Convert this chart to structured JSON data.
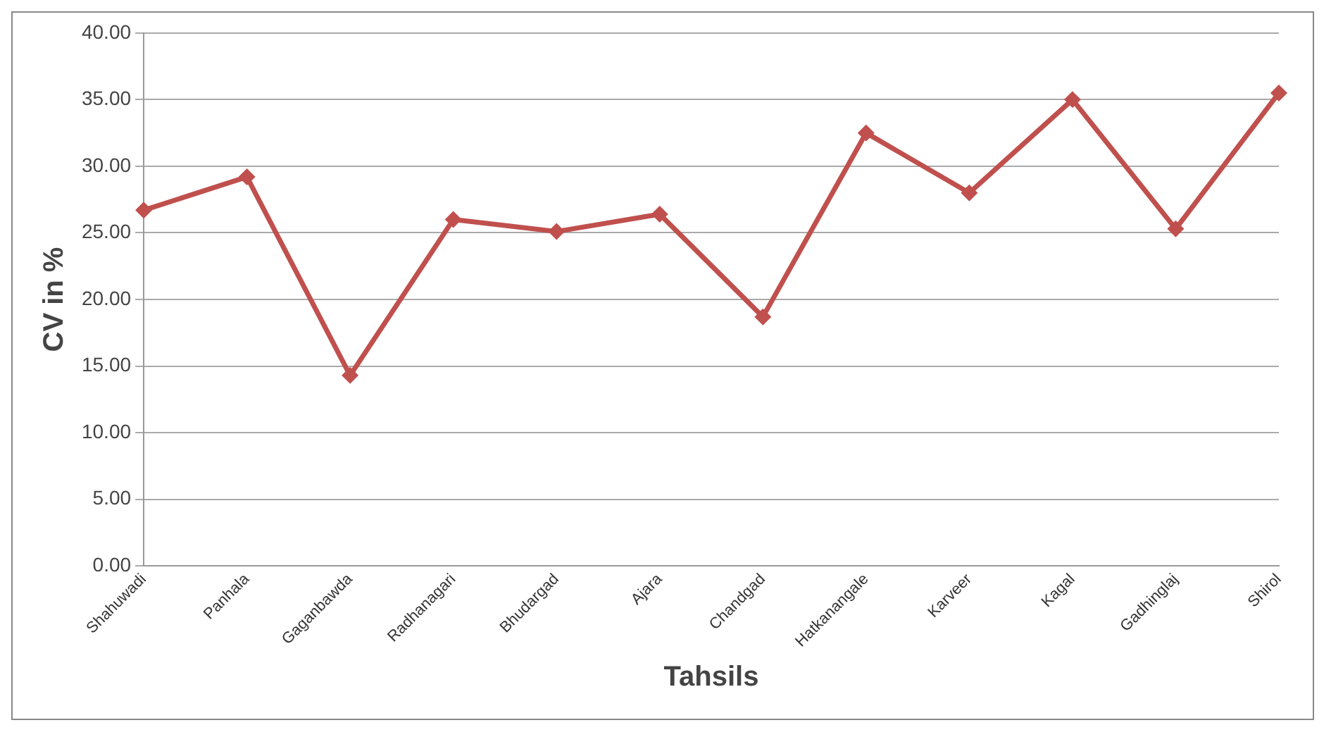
{
  "chart_data": {
    "type": "line",
    "xlabel": "Tahsils",
    "ylabel": "CV in %",
    "categories": [
      "Shahuwadi",
      "Panhala",
      "Gaganbawda",
      "Radhanagari",
      "Bhudargad",
      "Ajara",
      "Chandgad",
      "Hatkanangale",
      "Karveer",
      "Kagal",
      "Gadhinglaj",
      "Shirol"
    ],
    "series": [
      {
        "color": "#c0504d",
        "values": [
          26.7,
          29.2,
          14.3,
          26.0,
          25.1,
          26.4,
          18.7,
          32.5,
          28.0,
          35.0,
          25.3,
          35.5
        ]
      }
    ],
    "ylim": [
      0,
      40
    ],
    "yticks": [
      {
        "value": 0,
        "label": "0.00"
      },
      {
        "value": 5,
        "label": "5.00"
      },
      {
        "value": 10,
        "label": "10.00"
      },
      {
        "value": 15,
        "label": "15.00"
      },
      {
        "value": 20,
        "label": "20.00"
      },
      {
        "value": 25,
        "label": "25.00"
      },
      {
        "value": 30,
        "label": "30.00"
      },
      {
        "value": 35,
        "label": "35.00"
      },
      {
        "value": 40,
        "label": "40.00"
      }
    ],
    "grid": "y",
    "legend": false,
    "marker": "diamond",
    "line_style": "solid"
  }
}
